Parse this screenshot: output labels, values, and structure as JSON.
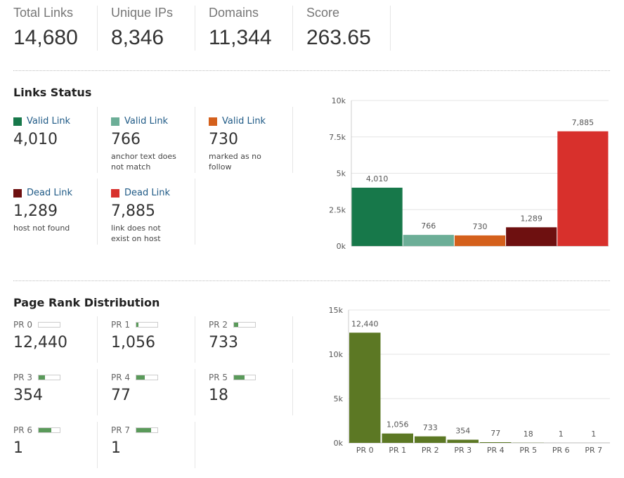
{
  "stats": [
    {
      "label": "Total Links",
      "value": "14,680"
    },
    {
      "label": "Unique IPs",
      "value": "8,346"
    },
    {
      "label": "Domains",
      "value": "11,344"
    },
    {
      "label": "Score",
      "value": "263.65"
    }
  ],
  "links_status": {
    "title": "Links Status",
    "items": [
      {
        "label": "Valid Link",
        "value": "4,010"
      },
      {
        "label": "Valid Link",
        "value": "766",
        "note": "anchor text does not match"
      },
      {
        "label": "Valid Link",
        "value": "730",
        "note": "marked as no follow"
      },
      {
        "label": "Dead Link",
        "value": "1,289",
        "note": "host not found"
      },
      {
        "label": "Dead Link",
        "value": "7,885",
        "note": "link does not exist on host"
      }
    ]
  },
  "page_rank": {
    "title": "Page Rank Distribution",
    "items": [
      {
        "label": "PR 0",
        "value": "12,440",
        "meter": 0
      },
      {
        "label": "PR 1",
        "value": "1,056",
        "meter": 10
      },
      {
        "label": "PR 2",
        "value": "733",
        "meter": 20
      },
      {
        "label": "PR 3",
        "value": "354",
        "meter": 30
      },
      {
        "label": "PR 4",
        "value": "77",
        "meter": 40
      },
      {
        "label": "PR 5",
        "value": "18",
        "meter": 50
      },
      {
        "label": "PR 6",
        "value": "1",
        "meter": 60
      },
      {
        "label": "PR 7",
        "value": "1",
        "meter": 70
      }
    ]
  },
  "chart_data": [
    {
      "type": "bar",
      "values": [
        4010,
        766,
        730,
        1289,
        7885
      ],
      "value_labels": [
        "4,010",
        "766",
        "730",
        "1,289",
        "7,885"
      ],
      "colors": [
        "#17784a",
        "#6cae97",
        "#d4601c",
        "#6e1010",
        "#d8302c"
      ],
      "ylim": [
        0,
        10000
      ],
      "yticks": [
        {
          "value": 0,
          "label": "0k"
        },
        {
          "value": 2500,
          "label": "2.5k"
        },
        {
          "value": 5000,
          "label": "5k"
        },
        {
          "value": 7500,
          "label": "7.5k"
        },
        {
          "value": 10000,
          "label": "10k"
        }
      ],
      "grid": true
    },
    {
      "type": "bar",
      "categories": [
        "PR 0",
        "PR 1",
        "PR 2",
        "PR 3",
        "PR 4",
        "PR 5",
        "PR 6",
        "PR 7"
      ],
      "values": [
        12440,
        1056,
        733,
        354,
        77,
        18,
        1,
        1
      ],
      "value_labels": [
        "12,440",
        "1,056",
        "733",
        "354",
        "77",
        "18",
        "1",
        "1"
      ],
      "color": "#5c7824",
      "ylim": [
        0,
        15000
      ],
      "yticks": [
        {
          "value": 0,
          "label": "0k"
        },
        {
          "value": 5000,
          "label": "5k"
        },
        {
          "value": 10000,
          "label": "10k"
        },
        {
          "value": 15000,
          "label": "15k"
        }
      ],
      "grid": true
    }
  ]
}
